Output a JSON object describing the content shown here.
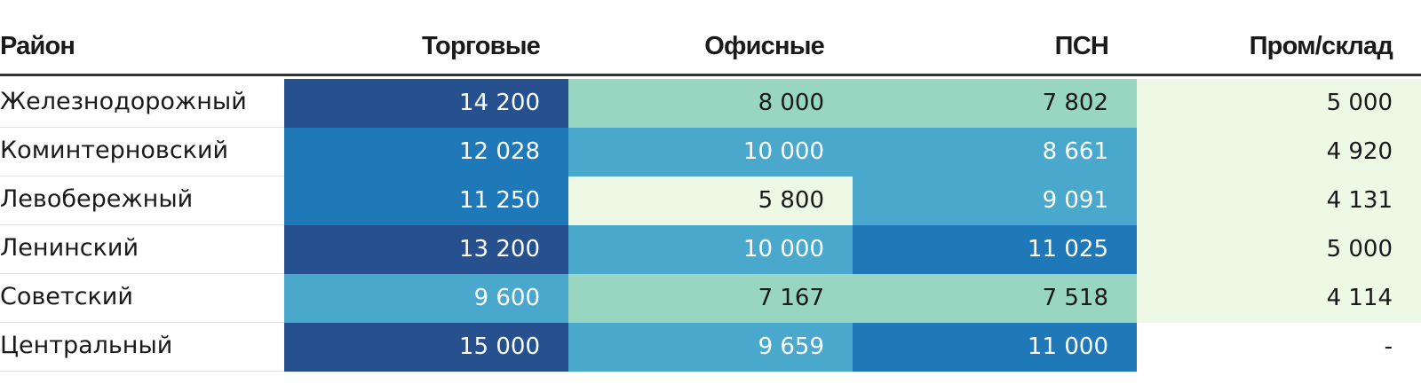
{
  "chart_data": {
    "type": "table",
    "columns": [
      "Район",
      "Торговые",
      "Офисные",
      "ПСН",
      "Пром/склад"
    ],
    "rows": [
      {
        "label": "Железнодорожный",
        "cells": [
          "14 200",
          "8 000",
          "7 802",
          "5 000"
        ],
        "values": [
          14200,
          8000,
          7802,
          5000
        ],
        "fills": [
          "#26518e",
          "#98d6c1",
          "#98d6c1",
          "#edf8e5"
        ],
        "text_colors": [
          "#ffffff",
          "#1a1a1a",
          "#1a1a1a",
          "#1a1a1a"
        ]
      },
      {
        "label": "Коминтерновский",
        "cells": [
          "12 028",
          "10 000",
          "8 661",
          "4 920"
        ],
        "values": [
          12028,
          10000,
          8661,
          4920
        ],
        "fills": [
          "#1f78b8",
          "#4aa8cc",
          "#4aa8cc",
          "#edf8e5"
        ],
        "text_colors": [
          "#ffffff",
          "#ffffff",
          "#ffffff",
          "#1a1a1a"
        ]
      },
      {
        "label": "Левобережный",
        "cells": [
          "11 250",
          "5 800",
          "9 091",
          "4 131"
        ],
        "values": [
          11250,
          5800,
          9091,
          4131
        ],
        "fills": [
          "#1f78b8",
          "#edf8e5",
          "#4aa8cc",
          "#edf8e5"
        ],
        "text_colors": [
          "#ffffff",
          "#1a1a1a",
          "#ffffff",
          "#1a1a1a"
        ]
      },
      {
        "label": "Ленинский",
        "cells": [
          "13 200",
          "10 000",
          "11 025",
          "5 000"
        ],
        "values": [
          13200,
          10000,
          11025,
          5000
        ],
        "fills": [
          "#26518e",
          "#4aa8cc",
          "#1f78b8",
          "#edf8e5"
        ],
        "text_colors": [
          "#ffffff",
          "#ffffff",
          "#ffffff",
          "#1a1a1a"
        ]
      },
      {
        "label": "Советский",
        "cells": [
          "9 600",
          "7 167",
          "7 518",
          "4 114"
        ],
        "values": [
          9600,
          7167,
          7518,
          4114
        ],
        "fills": [
          "#4aa8cc",
          "#98d6c1",
          "#98d6c1",
          "#edf8e5"
        ],
        "text_colors": [
          "#ffffff",
          "#1a1a1a",
          "#1a1a1a",
          "#1a1a1a"
        ]
      },
      {
        "label": "Центральный",
        "cells": [
          "15 000",
          "9 659",
          "11 000",
          "-"
        ],
        "values": [
          15000,
          9659,
          11000,
          null
        ],
        "fills": [
          "#26518e",
          "#4aa8cc",
          "#1f78b8",
          "#ffffff"
        ],
        "text_colors": [
          "#ffffff",
          "#ffffff",
          "#ffffff",
          "#1a1a1a"
        ]
      }
    ]
  }
}
